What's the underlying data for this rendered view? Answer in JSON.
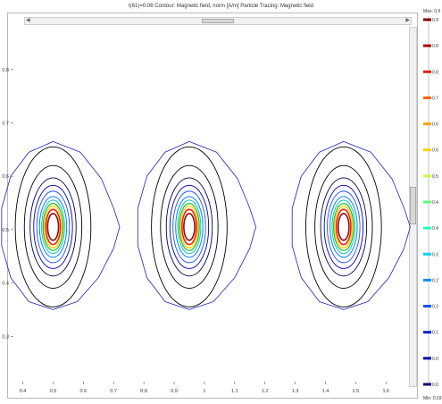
{
  "header": {
    "title": "t(61)=0.06   Contour: Magnetic field, norm [A/m]   Particle Tracing: Magnetic field"
  },
  "colorbar": {
    "max_label": "Max: 0.9",
    "min_label": "Min: 0.03",
    "ticks": [
      "0.9",
      "0.8",
      "0.8",
      "0.7",
      "0.6",
      "0.6",
      "0.5",
      "0.4",
      "0.4",
      "0.3",
      "0.2",
      "0.2",
      "0.1",
      "0.0",
      "0.0"
    ],
    "colors": [
      "#7f0000",
      "#b00000",
      "#e02000",
      "#ff6000",
      "#ffa000",
      "#ffd000",
      "#c0ff40",
      "#60ff80",
      "#20ffc0",
      "#00d0ff",
      "#0090ff",
      "#0050ff",
      "#0020e0",
      "#0000b0",
      "#000080"
    ]
  },
  "chart_data": {
    "type": "contour",
    "title": "t(61)=0.06   Contour: Magnetic field, norm [A/m]   Particle Tracing: Magnetic field",
    "xlabel": "",
    "ylabel": "",
    "xlim": [
      0.36,
      1.67
    ],
    "ylim": [
      0.21,
      0.88
    ],
    "x_ticks": [
      "0.4",
      "0.5",
      "0.6",
      "0.7",
      "0.8",
      "0.9",
      "1",
      "1.1",
      "1.2",
      "1.3",
      "1.4",
      "1.5",
      "1.6"
    ],
    "y_ticks": [
      "0.3",
      "0.4",
      "0.5",
      "0.6",
      "0.7",
      "0.8"
    ],
    "grid": false,
    "centers": [
      {
        "x": 0.5,
        "y": 0.505
      },
      {
        "x": 0.95,
        "y": 0.505
      },
      {
        "x": 1.46,
        "y": 0.505
      }
    ],
    "rings": [
      {
        "color": "#8b1010",
        "rx": 0.018,
        "ry": 0.025,
        "width": 1.6
      },
      {
        "color": "#ff2000",
        "rx": 0.024,
        "ry": 0.033,
        "width": 1.6
      },
      {
        "color": "#ffd000",
        "rx": 0.029,
        "ry": 0.039,
        "width": 1.3
      },
      {
        "color": "#20c020",
        "rx": 0.033,
        "ry": 0.044,
        "width": 1.2
      },
      {
        "color": "#00c8c8",
        "rx": 0.038,
        "ry": 0.05,
        "width": 1.0
      },
      {
        "color": "#0080ff",
        "rx": 0.045,
        "ry": 0.057,
        "width": 1.0
      },
      {
        "color": "#2050ff",
        "rx": 0.054,
        "ry": 0.067,
        "width": 0.9
      },
      {
        "color": "#0000b0",
        "rx": 0.064,
        "ry": 0.078,
        "width": 0.9
      },
      {
        "color": "#000050",
        "rx": 0.076,
        "ry": 0.092,
        "width": 0.9
      },
      {
        "color": "#000000",
        "rx": 0.095,
        "ry": 0.115,
        "width": 0.9
      },
      {
        "color": "#000000",
        "rx": 0.125,
        "ry": 0.15,
        "width": 0.9
      }
    ],
    "outer_contour": {
      "color": "#2020c0",
      "points": [
        [
          0.5,
          0.665
        ],
        [
          0.59,
          0.645
        ],
        [
          0.66,
          0.595
        ],
        [
          0.7,
          0.54
        ],
        [
          0.72,
          0.505
        ],
        [
          0.7,
          0.465
        ],
        [
          0.65,
          0.41
        ],
        [
          0.58,
          0.365
        ],
        [
          0.5,
          0.35
        ],
        [
          0.42,
          0.365
        ],
        [
          0.36,
          0.41
        ],
        [
          0.33,
          0.47
        ],
        [
          0.33,
          0.54
        ],
        [
          0.36,
          0.6
        ],
        [
          0.42,
          0.645
        ]
      ]
    }
  }
}
